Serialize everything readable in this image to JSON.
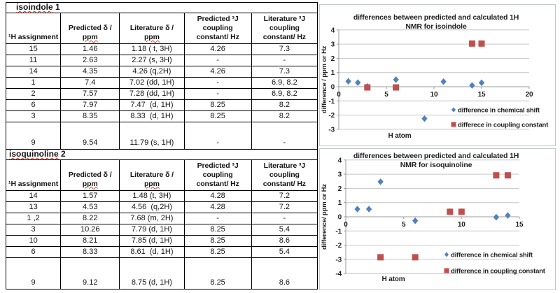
{
  "tables": [
    {
      "title": "isoindole 1",
      "headers": [
        [
          "¹H assignment"
        ],
        [
          "Predicted δ /",
          "ppm"
        ],
        [
          "Literature δ /",
          "ppm"
        ],
        [
          "Predicted ³J",
          "coupling",
          "constant/ Hz"
        ],
        [
          "Literature ³J",
          "coupling",
          "constant/ Hz"
        ]
      ],
      "rows": [
        [
          "15",
          "1.46",
          "1.18 ( t, 3H)",
          "4.26",
          "7.3"
        ],
        [
          "11",
          "2.63",
          "2.27 (s, 3H)",
          "-",
          "-"
        ],
        [
          "14",
          "4.35",
          "4.26 (q,2H)",
          "4.26",
          "7.3"
        ],
        [
          "1",
          "7.4",
          "7.02 (dd, 1H)",
          "-",
          "6.9, 8.2"
        ],
        [
          "2",
          "7.57",
          "7.28 (dd, 1H)",
          "-",
          "6.9, 8.2"
        ],
        [
          "6",
          "7.97",
          "7.47  (d, 1H)",
          "8.25",
          "8.2"
        ],
        [
          "3",
          "8.35",
          "8.33  (d, 1H)",
          "8.25",
          "8.2"
        ],
        [
          "9",
          "9.54",
          "11.79 (s, 1H)",
          "-",
          "-"
        ]
      ]
    },
    {
      "title": "isoquinoline 2",
      "headers": [
        [
          "¹H assignment"
        ],
        [
          "Predicted δ /",
          "ppm"
        ],
        [
          "Literature δ /",
          "ppm"
        ],
        [
          "Predicted ³J",
          "coupling",
          "constant/ Hz"
        ],
        [
          "Literature ³J",
          "coupling",
          "constant/ Hz"
        ]
      ],
      "rows": [
        [
          "14",
          "1.57",
          "1.48 (t, 3H)",
          "4.28",
          "7.2"
        ],
        [
          "13",
          "4.53",
          "4.56  (q,2H)",
          "4.28",
          "7.2"
        ],
        [
          "1 ,2",
          "8.22",
          "7.68 (m, 2H)",
          "-",
          "-"
        ],
        [
          "3",
          "10.26",
          "7.79 (d, 1H)",
          "8.25",
          "5.4"
        ],
        [
          "10",
          "8.21",
          "7.85 (d, 1H)",
          "8.25",
          "8.6"
        ],
        [
          "6",
          "8.33",
          "8.61   (d, 1H)",
          "8.25",
          "5.4"
        ],
        [
          "9",
          "9.12",
          "8.75 (d, 1H)",
          "8.25",
          "8.6"
        ]
      ]
    }
  ],
  "chart_data": [
    {
      "type": "scatter",
      "title_lines": [
        "differences between predicted and calculated 1H",
        "NMR for isoindole"
      ],
      "xlabel": "H atom",
      "ylabel": "difference / ppm or Hz",
      "xlim": [
        0,
        20
      ],
      "ylim": [
        -3,
        4
      ],
      "xticks": [
        0,
        5,
        10,
        15,
        20
      ],
      "ytick_step": 1,
      "grid": "horizontal",
      "legend_position": "inside-right-bottom",
      "series": [
        {
          "name": "difference in chemical shift",
          "marker": "diamond",
          "color": "#4F81BD",
          "points": [
            [
              1,
              0.38
            ],
            [
              2,
              0.29
            ],
            [
              3,
              0.02
            ],
            [
              6,
              0.5
            ],
            [
              9,
              -2.25
            ],
            [
              11,
              0.36
            ],
            [
              14,
              0.09
            ],
            [
              15,
              0.28
            ]
          ]
        },
        {
          "name": "differece in coupling constant",
          "marker": "square",
          "color": "#C0504D",
          "points": [
            [
              3,
              -0.05
            ],
            [
              6,
              -0.05
            ],
            [
              14,
              3.04
            ],
            [
              15,
              3.04
            ]
          ]
        }
      ]
    },
    {
      "type": "scatter",
      "title_lines": [
        "differences between predicted and calculated 1H",
        "NMR for isoquinoline"
      ],
      "xlabel": "H atom",
      "ylabel": "difference/ ppm or Hz",
      "xlim": [
        0,
        15
      ],
      "ylim": [
        -4,
        4
      ],
      "xticks": [
        0,
        5,
        10,
        15
      ],
      "ytick_step": 1,
      "grid": "horizontal",
      "legend_position": "inside-right-bottom",
      "series": [
        {
          "name": "difference in chemical shift",
          "marker": "diamond",
          "color": "#4F81BD",
          "points": [
            [
              1,
              0.54
            ],
            [
              2,
              0.54
            ],
            [
              3,
              2.47
            ],
            [
              6,
              -0.28
            ],
            [
              9,
              0.37
            ],
            [
              10,
              0.36
            ],
            [
              13,
              -0.03
            ],
            [
              14,
              0.09
            ]
          ]
        },
        {
          "name": "difference in coupling constant",
          "marker": "square",
          "color": "#C0504D",
          "points": [
            [
              3,
              -2.85
            ],
            [
              6,
              -2.85
            ],
            [
              9,
              0.35
            ],
            [
              10,
              0.35
            ],
            [
              13,
              2.92
            ],
            [
              14,
              2.92
            ]
          ]
        }
      ]
    }
  ],
  "colors": {
    "series_blue": "#4F81BD",
    "series_red": "#C0504D",
    "gridline": "#c6c6c6",
    "axis_line": "#9b9b9b",
    "text": "#1f1f1f",
    "squiggle": "#e03c31",
    "table_border": "#000000"
  }
}
